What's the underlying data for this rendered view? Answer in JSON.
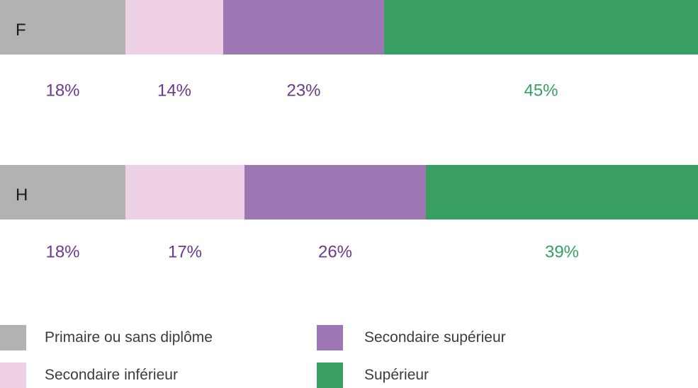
{
  "chart_data": {
    "type": "bar",
    "orientation": "horizontal",
    "stacked": true,
    "categories": [
      "F",
      "H"
    ],
    "series": [
      {
        "name": "Primaire ou sans diplôme",
        "values": [
          18,
          18
        ],
        "labels": [
          "18%",
          "18%"
        ],
        "color": "#b2b2b2",
        "label_color": "#6a3a8c"
      },
      {
        "name": "Secondaire inférieur",
        "values": [
          14,
          17
        ],
        "labels": [
          "14%",
          "17%"
        ],
        "color": "#efd1e6",
        "label_color": "#6a3a8c"
      },
      {
        "name": "Secondaire supérieur",
        "values": [
          23,
          26
        ],
        "labels": [
          "23%",
          "26%"
        ],
        "color": "#9d77b4",
        "label_color": "#6a3a8c"
      },
      {
        "name": "Supérieur",
        "values": [
          45,
          39
        ],
        "labels": [
          "45%",
          "39%"
        ],
        "color": "#389e62",
        "label_color": "#389e62"
      }
    ],
    "xlim": [
      0,
      100
    ],
    "grid": false,
    "legend_position": "bottom"
  }
}
